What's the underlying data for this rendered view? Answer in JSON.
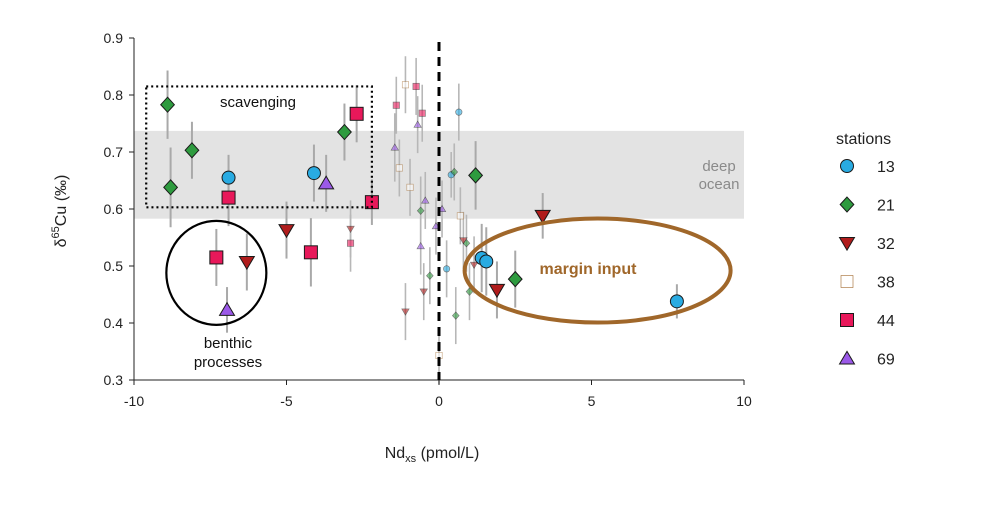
{
  "chart_data": {
    "type": "scatter",
    "title": "",
    "xlabel": {
      "main": "Nd",
      "sub": "xs",
      "rest": " (pmol/L)"
    },
    "ylabel": {
      "delta": "δ",
      "sup": "65",
      "rest": "Cu (‰)"
    },
    "xlim": [
      -10,
      10
    ],
    "ylim": [
      0.3,
      0.9
    ],
    "xticks": [
      -10,
      -5,
      0,
      5,
      10
    ],
    "yticks": [
      0.3,
      0.4,
      0.5,
      0.6,
      0.7,
      0.8,
      0.9
    ],
    "xtick_labels": [
      "-10",
      "-5",
      "0",
      "5",
      "10"
    ],
    "ytick_labels": [
      "0.3",
      "0.4",
      "0.5",
      "0.6",
      "0.7",
      "0.8",
      "0.9"
    ],
    "grid": false,
    "legend": {
      "title": "stations",
      "position": "right"
    },
    "reference_line": {
      "x": 0,
      "style": "dashed"
    },
    "deep_ocean_band": {
      "y_min": 0.583,
      "y_max": 0.737,
      "label_lines": [
        "deep",
        "ocean"
      ]
    },
    "annotations": [
      {
        "id": "scavenging",
        "text_lines": [
          "scavenging"
        ],
        "shape": "dotted-rectangle",
        "x_range": [
          -9.6,
          -2.2
        ],
        "y_range": [
          0.603,
          0.815
        ],
        "color": "#000000"
      },
      {
        "id": "benthic",
        "text_lines": [
          "benthic",
          "processes"
        ],
        "shape": "ellipse",
        "center": [
          -7.3,
          0.488
        ],
        "color": "#000000"
      },
      {
        "id": "margin",
        "text_lines": [
          "margin input"
        ],
        "shape": "ellipse",
        "center": [
          5.2,
          0.492
        ],
        "color": "#a0672a"
      }
    ],
    "series": [
      {
        "name": "13",
        "marker": "circle",
        "color": "#29abe2",
        "points": [
          {
            "x": -6.9,
            "y": 0.655,
            "err": 0.04
          },
          {
            "x": -4.1,
            "y": 0.663,
            "err": 0.05
          },
          {
            "x": 1.4,
            "y": 0.514,
            "err": 0.06
          },
          {
            "x": 1.55,
            "y": 0.508,
            "err": 0.06
          },
          {
            "x": 7.8,
            "y": 0.438,
            "err": 0.03
          }
        ],
        "small_points": [
          {
            "x": 0.65,
            "y": 0.77,
            "err": 0.05
          },
          {
            "x": 0.4,
            "y": 0.66,
            "err": 0.04
          },
          {
            "x": 0.25,
            "y": 0.495,
            "err": 0.05
          }
        ]
      },
      {
        "name": "21",
        "marker": "diamond",
        "color": "#2e9b3f",
        "points": [
          {
            "x": -8.9,
            "y": 0.783,
            "err": 0.06
          },
          {
            "x": -8.8,
            "y": 0.638,
            "err": 0.07
          },
          {
            "x": -8.1,
            "y": 0.703,
            "err": 0.05
          },
          {
            "x": -3.1,
            "y": 0.735,
            "err": 0.05
          },
          {
            "x": 1.2,
            "y": 0.659,
            "err": 0.06
          },
          {
            "x": 2.5,
            "y": 0.477,
            "err": 0.05
          }
        ],
        "small_points": [
          {
            "x": -0.6,
            "y": 0.597,
            "err": 0.06
          },
          {
            "x": 0.5,
            "y": 0.665,
            "err": 0.05
          },
          {
            "x": 0.9,
            "y": 0.54,
            "err": 0.05
          },
          {
            "x": 1.0,
            "y": 0.455,
            "err": 0.05
          },
          {
            "x": 0.55,
            "y": 0.413,
            "err": 0.05
          },
          {
            "x": -0.3,
            "y": 0.483,
            "err": 0.05
          }
        ]
      },
      {
        "name": "32",
        "marker": "triangle-down",
        "color": "#b01c1c",
        "points": [
          {
            "x": -6.3,
            "y": 0.507,
            "err": 0.05
          },
          {
            "x": -5.0,
            "y": 0.563,
            "err": 0.05
          },
          {
            "x": 1.9,
            "y": 0.458,
            "err": 0.05
          },
          {
            "x": 3.4,
            "y": 0.588,
            "err": 0.04
          }
        ],
        "small_points": [
          {
            "x": -2.9,
            "y": 0.565,
            "err": 0.05
          },
          {
            "x": -1.1,
            "y": 0.42,
            "err": 0.05
          },
          {
            "x": -0.5,
            "y": 0.455,
            "err": 0.05
          },
          {
            "x": 0.8,
            "y": 0.545,
            "err": 0.05
          },
          {
            "x": 1.15,
            "y": 0.502,
            "err": 0.05
          }
        ]
      },
      {
        "name": "38",
        "marker": "square-open",
        "color": "#a0672a",
        "points": [],
        "small_points": [
          {
            "x": -1.1,
            "y": 0.818,
            "err": 0.05
          },
          {
            "x": -1.3,
            "y": 0.672,
            "err": 0.05
          },
          {
            "x": -0.95,
            "y": 0.638,
            "err": 0.05
          },
          {
            "x": 0.7,
            "y": 0.588,
            "err": 0.05
          },
          {
            "x": 0.0,
            "y": 0.343,
            "err": 0.05
          }
        ]
      },
      {
        "name": "44",
        "marker": "square",
        "color": "#e8185a",
        "points": [
          {
            "x": -7.3,
            "y": 0.515,
            "err": 0.05
          },
          {
            "x": -6.9,
            "y": 0.62,
            "err": 0.05
          },
          {
            "x": -4.2,
            "y": 0.524,
            "err": 0.06
          },
          {
            "x": -2.7,
            "y": 0.767,
            "err": 0.05
          },
          {
            "x": -2.2,
            "y": 0.612,
            "err": 0.04
          }
        ],
        "small_points": [
          {
            "x": -1.4,
            "y": 0.782,
            "err": 0.05
          },
          {
            "x": -0.75,
            "y": 0.815,
            "err": 0.05
          },
          {
            "x": -0.55,
            "y": 0.768,
            "err": 0.05
          },
          {
            "x": -2.9,
            "y": 0.54,
            "err": 0.05
          }
        ]
      },
      {
        "name": "69",
        "marker": "triangle-up",
        "color": "#9b59e8",
        "points": [
          {
            "x": -6.95,
            "y": 0.423,
            "err": 0.04
          },
          {
            "x": -3.7,
            "y": 0.645,
            "err": 0.05
          }
        ],
        "small_points": [
          {
            "x": -1.45,
            "y": 0.708,
            "err": 0.06
          },
          {
            "x": -0.7,
            "y": 0.748,
            "err": 0.05
          },
          {
            "x": -0.45,
            "y": 0.615,
            "err": 0.05
          },
          {
            "x": -0.1,
            "y": 0.57,
            "err": 0.05
          },
          {
            "x": -0.6,
            "y": 0.535,
            "err": 0.05
          },
          {
            "x": 0.1,
            "y": 0.6,
            "err": 0.05
          }
        ]
      }
    ]
  }
}
